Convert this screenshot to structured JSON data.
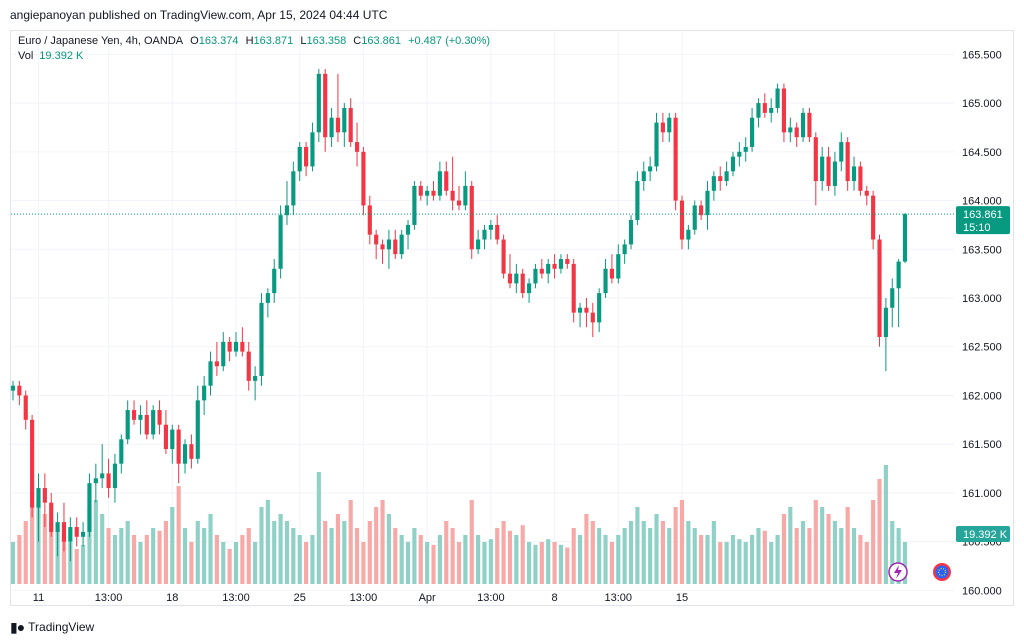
{
  "header": {
    "published": "angiepanoyan published on TradingView.com, Apr 15, 2024 04:44 UTC"
  },
  "legend": {
    "symbol": "Euro / Japanese Yen, 4h, OANDA",
    "open_label": "O",
    "open": "163.374",
    "high_label": "H",
    "high": "163.871",
    "low_label": "L",
    "low": "163.358",
    "close_label": "C",
    "close": "163.861",
    "change": "+0.487 (+0.30%)",
    "vol_label": "Vol",
    "vol": "19.392 K"
  },
  "price_tag": {
    "price": "163.861",
    "countdown": "15:10"
  },
  "volume_tag": "19.392 K",
  "footer": {
    "brand": "TradingView"
  },
  "colors": {
    "up": "#089981",
    "down": "#f23645",
    "up_vol": "#8fd1c6",
    "down_vol": "#f7a9a7"
  },
  "icons": {
    "flash": "lightning-icon",
    "flag": "eu-flag-icon"
  },
  "chart_data": {
    "type": "candlestick",
    "symbol": "EURJPY",
    "interval": "4h",
    "ylim": [
      159.85,
      165.75
    ],
    "y_ticks": [
      "165.500",
      "165.000",
      "164.500",
      "164.000",
      "163.500",
      "163.000",
      "162.500",
      "162.000",
      "161.500",
      "161.000",
      "160.500",
      "160.000"
    ],
    "x_ticks": [
      {
        "label": "11",
        "index": 4
      },
      {
        "label": "13:00",
        "index": 15
      },
      {
        "label": "18",
        "index": 25
      },
      {
        "label": "13:00",
        "index": 35
      },
      {
        "label": "25",
        "index": 45
      },
      {
        "label": "13:00",
        "index": 55
      },
      {
        "label": "Apr",
        "index": 65
      },
      {
        "label": "13:00",
        "index": 75
      },
      {
        "label": "8",
        "index": 85
      },
      {
        "label": "13:00",
        "index": 95
      },
      {
        "label": "15",
        "index": 105
      }
    ],
    "candles": [
      {
        "o": 162.05,
        "h": 162.15,
        "l": 161.95,
        "c": 162.1,
        "v": 0.3
      },
      {
        "o": 162.1,
        "h": 162.15,
        "l": 161.9,
        "c": 162.0,
        "v": 0.35
      },
      {
        "o": 162.0,
        "h": 162.05,
        "l": 161.65,
        "c": 161.75,
        "v": 0.45
      },
      {
        "o": 161.75,
        "h": 161.8,
        "l": 160.75,
        "c": 160.85,
        "v": 0.55
      },
      {
        "o": 160.85,
        "h": 161.2,
        "l": 160.5,
        "c": 161.05,
        "v": 0.6
      },
      {
        "o": 161.05,
        "h": 161.2,
        "l": 160.65,
        "c": 160.9,
        "v": 0.5
      },
      {
        "o": 160.9,
        "h": 161.0,
        "l": 160.55,
        "c": 160.6,
        "v": 0.45
      },
      {
        "o": 160.6,
        "h": 160.8,
        "l": 160.35,
        "c": 160.7,
        "v": 0.4
      },
      {
        "o": 160.7,
        "h": 160.9,
        "l": 160.4,
        "c": 160.5,
        "v": 0.35
      },
      {
        "o": 160.5,
        "h": 160.75,
        "l": 160.3,
        "c": 160.65,
        "v": 0.3
      },
      {
        "o": 160.65,
        "h": 160.75,
        "l": 160.45,
        "c": 160.55,
        "v": 0.25
      },
      {
        "o": 160.55,
        "h": 160.7,
        "l": 160.45,
        "c": 160.6,
        "v": 0.28
      },
      {
        "o": 160.6,
        "h": 161.2,
        "l": 160.55,
        "c": 161.1,
        "v": 0.55
      },
      {
        "o": 161.1,
        "h": 161.3,
        "l": 160.9,
        "c": 161.15,
        "v": 0.6
      },
      {
        "o": 161.15,
        "h": 161.5,
        "l": 161.05,
        "c": 161.2,
        "v": 0.5
      },
      {
        "o": 161.2,
        "h": 161.35,
        "l": 160.95,
        "c": 161.05,
        "v": 0.4
      },
      {
        "o": 161.05,
        "h": 161.4,
        "l": 160.9,
        "c": 161.3,
        "v": 0.35
      },
      {
        "o": 161.3,
        "h": 161.6,
        "l": 161.2,
        "c": 161.55,
        "v": 0.4
      },
      {
        "o": 161.55,
        "h": 161.95,
        "l": 161.5,
        "c": 161.85,
        "v": 0.45
      },
      {
        "o": 161.85,
        "h": 161.95,
        "l": 161.7,
        "c": 161.75,
        "v": 0.35
      },
      {
        "o": 161.75,
        "h": 161.9,
        "l": 161.6,
        "c": 161.8,
        "v": 0.3
      },
      {
        "o": 161.8,
        "h": 161.95,
        "l": 161.55,
        "c": 161.6,
        "v": 0.35
      },
      {
        "o": 161.6,
        "h": 161.9,
        "l": 161.55,
        "c": 161.85,
        "v": 0.4
      },
      {
        "o": 161.85,
        "h": 161.95,
        "l": 161.6,
        "c": 161.7,
        "v": 0.38
      },
      {
        "o": 161.7,
        "h": 161.85,
        "l": 161.4,
        "c": 161.45,
        "v": 0.45
      },
      {
        "o": 161.45,
        "h": 161.7,
        "l": 161.3,
        "c": 161.65,
        "v": 0.55
      },
      {
        "o": 161.65,
        "h": 161.7,
        "l": 161.1,
        "c": 161.3,
        "v": 0.7
      },
      {
        "o": 161.3,
        "h": 161.55,
        "l": 161.2,
        "c": 161.5,
        "v": 0.4
      },
      {
        "o": 161.5,
        "h": 161.6,
        "l": 161.25,
        "c": 161.35,
        "v": 0.3
      },
      {
        "o": 161.35,
        "h": 162.1,
        "l": 161.3,
        "c": 161.95,
        "v": 0.45
      },
      {
        "o": 161.95,
        "h": 162.2,
        "l": 161.8,
        "c": 162.1,
        "v": 0.4
      },
      {
        "o": 162.1,
        "h": 162.45,
        "l": 162.0,
        "c": 162.35,
        "v": 0.5
      },
      {
        "o": 162.35,
        "h": 162.55,
        "l": 162.2,
        "c": 162.3,
        "v": 0.35
      },
      {
        "o": 162.3,
        "h": 162.65,
        "l": 162.25,
        "c": 162.55,
        "v": 0.3
      },
      {
        "o": 162.55,
        "h": 162.6,
        "l": 162.35,
        "c": 162.45,
        "v": 0.25
      },
      {
        "o": 162.45,
        "h": 162.65,
        "l": 162.4,
        "c": 162.55,
        "v": 0.3
      },
      {
        "o": 162.55,
        "h": 162.7,
        "l": 162.4,
        "c": 162.45,
        "v": 0.35
      },
      {
        "o": 162.45,
        "h": 162.55,
        "l": 162.05,
        "c": 162.15,
        "v": 0.4
      },
      {
        "o": 162.15,
        "h": 162.3,
        "l": 161.95,
        "c": 162.2,
        "v": 0.3
      },
      {
        "o": 162.2,
        "h": 163.05,
        "l": 162.1,
        "c": 162.95,
        "v": 0.55
      },
      {
        "o": 162.95,
        "h": 163.1,
        "l": 162.8,
        "c": 163.05,
        "v": 0.6
      },
      {
        "o": 163.05,
        "h": 163.4,
        "l": 162.95,
        "c": 163.3,
        "v": 0.45
      },
      {
        "o": 163.3,
        "h": 163.95,
        "l": 163.2,
        "c": 163.85,
        "v": 0.5
      },
      {
        "o": 163.85,
        "h": 164.2,
        "l": 163.75,
        "c": 163.95,
        "v": 0.45
      },
      {
        "o": 163.95,
        "h": 164.4,
        "l": 163.85,
        "c": 164.3,
        "v": 0.4
      },
      {
        "o": 164.3,
        "h": 164.6,
        "l": 164.2,
        "c": 164.55,
        "v": 0.35
      },
      {
        "o": 164.55,
        "h": 164.6,
        "l": 164.25,
        "c": 164.35,
        "v": 0.3
      },
      {
        "o": 164.35,
        "h": 164.8,
        "l": 164.3,
        "c": 164.7,
        "v": 0.35
      },
      {
        "o": 164.7,
        "h": 165.35,
        "l": 164.6,
        "c": 165.3,
        "v": 0.8
      },
      {
        "o": 165.3,
        "h": 165.35,
        "l": 164.5,
        "c": 164.65,
        "v": 0.45
      },
      {
        "o": 164.65,
        "h": 164.95,
        "l": 164.55,
        "c": 164.85,
        "v": 0.4
      },
      {
        "o": 164.85,
        "h": 165.3,
        "l": 164.6,
        "c": 164.7,
        "v": 0.5
      },
      {
        "o": 164.7,
        "h": 165.0,
        "l": 164.55,
        "c": 164.95,
        "v": 0.45
      },
      {
        "o": 164.95,
        "h": 165.05,
        "l": 164.55,
        "c": 164.6,
        "v": 0.6
      },
      {
        "o": 164.6,
        "h": 164.8,
        "l": 164.35,
        "c": 164.5,
        "v": 0.4
      },
      {
        "o": 164.5,
        "h": 164.55,
        "l": 163.85,
        "c": 163.95,
        "v": 0.3
      },
      {
        "o": 163.95,
        "h": 164.05,
        "l": 163.55,
        "c": 163.65,
        "v": 0.45
      },
      {
        "o": 163.65,
        "h": 163.7,
        "l": 163.4,
        "c": 163.55,
        "v": 0.55
      },
      {
        "o": 163.55,
        "h": 163.6,
        "l": 163.35,
        "c": 163.5,
        "v": 0.6
      },
      {
        "o": 163.5,
        "h": 163.7,
        "l": 163.3,
        "c": 163.6,
        "v": 0.5
      },
      {
        "o": 163.6,
        "h": 163.7,
        "l": 163.4,
        "c": 163.45,
        "v": 0.4
      },
      {
        "o": 163.45,
        "h": 163.7,
        "l": 163.4,
        "c": 163.65,
        "v": 0.35
      },
      {
        "o": 163.65,
        "h": 163.8,
        "l": 163.5,
        "c": 163.75,
        "v": 0.3
      },
      {
        "o": 163.75,
        "h": 164.2,
        "l": 163.7,
        "c": 164.15,
        "v": 0.4
      },
      {
        "o": 164.15,
        "h": 164.2,
        "l": 164.0,
        "c": 164.05,
        "v": 0.35
      },
      {
        "o": 164.05,
        "h": 164.15,
        "l": 163.95,
        "c": 164.1,
        "v": 0.3
      },
      {
        "o": 164.1,
        "h": 164.2,
        "l": 164.0,
        "c": 164.05,
        "v": 0.28
      },
      {
        "o": 164.05,
        "h": 164.4,
        "l": 164.0,
        "c": 164.3,
        "v": 0.35
      },
      {
        "o": 164.3,
        "h": 164.4,
        "l": 164.05,
        "c": 164.1,
        "v": 0.45
      },
      {
        "o": 164.1,
        "h": 164.45,
        "l": 163.9,
        "c": 164.0,
        "v": 0.4
      },
      {
        "o": 164.0,
        "h": 164.15,
        "l": 163.9,
        "c": 163.95,
        "v": 0.3
      },
      {
        "o": 163.95,
        "h": 164.3,
        "l": 163.9,
        "c": 164.15,
        "v": 0.35
      },
      {
        "o": 164.15,
        "h": 164.2,
        "l": 163.4,
        "c": 163.5,
        "v": 0.6
      },
      {
        "o": 163.5,
        "h": 163.7,
        "l": 163.45,
        "c": 163.6,
        "v": 0.35
      },
      {
        "o": 163.6,
        "h": 163.75,
        "l": 163.5,
        "c": 163.7,
        "v": 0.3
      },
      {
        "o": 163.7,
        "h": 163.8,
        "l": 163.6,
        "c": 163.75,
        "v": 0.32
      },
      {
        "o": 163.75,
        "h": 163.85,
        "l": 163.55,
        "c": 163.6,
        "v": 0.4
      },
      {
        "o": 163.6,
        "h": 163.65,
        "l": 163.2,
        "c": 163.25,
        "v": 0.45
      },
      {
        "o": 163.25,
        "h": 163.45,
        "l": 163.1,
        "c": 163.15,
        "v": 0.38
      },
      {
        "o": 163.15,
        "h": 163.35,
        "l": 163.05,
        "c": 163.25,
        "v": 0.35
      },
      {
        "o": 163.25,
        "h": 163.3,
        "l": 163.0,
        "c": 163.05,
        "v": 0.42
      },
      {
        "o": 163.05,
        "h": 163.2,
        "l": 162.95,
        "c": 163.15,
        "v": 0.3
      },
      {
        "o": 163.15,
        "h": 163.35,
        "l": 163.1,
        "c": 163.3,
        "v": 0.28
      },
      {
        "o": 163.3,
        "h": 163.4,
        "l": 163.2,
        "c": 163.25,
        "v": 0.3
      },
      {
        "o": 163.25,
        "h": 163.4,
        "l": 163.15,
        "c": 163.35,
        "v": 0.32
      },
      {
        "o": 163.35,
        "h": 163.45,
        "l": 163.2,
        "c": 163.3,
        "v": 0.3
      },
      {
        "o": 163.3,
        "h": 163.45,
        "l": 163.25,
        "c": 163.4,
        "v": 0.28
      },
      {
        "o": 163.4,
        "h": 163.45,
        "l": 163.3,
        "c": 163.35,
        "v": 0.26
      },
      {
        "o": 163.35,
        "h": 163.4,
        "l": 162.75,
        "c": 162.85,
        "v": 0.4
      },
      {
        "o": 162.85,
        "h": 162.95,
        "l": 162.7,
        "c": 162.9,
        "v": 0.35
      },
      {
        "o": 162.9,
        "h": 163.0,
        "l": 162.7,
        "c": 162.85,
        "v": 0.5
      },
      {
        "o": 162.85,
        "h": 162.95,
        "l": 162.6,
        "c": 162.75,
        "v": 0.45
      },
      {
        "o": 162.75,
        "h": 163.1,
        "l": 162.65,
        "c": 163.05,
        "v": 0.4
      },
      {
        "o": 163.05,
        "h": 163.4,
        "l": 163.0,
        "c": 163.3,
        "v": 0.35
      },
      {
        "o": 163.3,
        "h": 163.45,
        "l": 163.15,
        "c": 163.2,
        "v": 0.3
      },
      {
        "o": 163.2,
        "h": 163.55,
        "l": 163.15,
        "c": 163.45,
        "v": 0.35
      },
      {
        "o": 163.45,
        "h": 163.6,
        "l": 163.35,
        "c": 163.55,
        "v": 0.4
      },
      {
        "o": 163.55,
        "h": 163.85,
        "l": 163.5,
        "c": 163.8,
        "v": 0.45
      },
      {
        "o": 163.8,
        "h": 164.3,
        "l": 163.75,
        "c": 164.2,
        "v": 0.55
      },
      {
        "o": 164.2,
        "h": 164.4,
        "l": 164.1,
        "c": 164.3,
        "v": 0.45
      },
      {
        "o": 164.3,
        "h": 164.45,
        "l": 164.2,
        "c": 164.35,
        "v": 0.4
      },
      {
        "o": 164.35,
        "h": 164.9,
        "l": 164.3,
        "c": 164.8,
        "v": 0.5
      },
      {
        "o": 164.8,
        "h": 164.9,
        "l": 164.6,
        "c": 164.7,
        "v": 0.45
      },
      {
        "o": 164.7,
        "h": 164.9,
        "l": 164.6,
        "c": 164.85,
        "v": 0.4
      },
      {
        "o": 164.85,
        "h": 164.9,
        "l": 163.9,
        "c": 164.0,
        "v": 0.55
      },
      {
        "o": 164.0,
        "h": 164.05,
        "l": 163.5,
        "c": 163.6,
        "v": 0.6
      },
      {
        "o": 163.6,
        "h": 163.75,
        "l": 163.5,
        "c": 163.7,
        "v": 0.45
      },
      {
        "o": 163.7,
        "h": 164.0,
        "l": 163.65,
        "c": 163.95,
        "v": 0.4
      },
      {
        "o": 163.95,
        "h": 164.0,
        "l": 163.8,
        "c": 163.85,
        "v": 0.35
      },
      {
        "o": 163.85,
        "h": 164.2,
        "l": 163.7,
        "c": 164.1,
        "v": 0.35
      },
      {
        "o": 164.1,
        "h": 164.3,
        "l": 164.0,
        "c": 164.25,
        "v": 0.45
      },
      {
        "o": 164.25,
        "h": 164.35,
        "l": 164.1,
        "c": 164.2,
        "v": 0.3
      },
      {
        "o": 164.2,
        "h": 164.4,
        "l": 164.15,
        "c": 164.3,
        "v": 0.3
      },
      {
        "o": 164.3,
        "h": 164.5,
        "l": 164.25,
        "c": 164.45,
        "v": 0.35
      },
      {
        "o": 164.45,
        "h": 164.6,
        "l": 164.35,
        "c": 164.5,
        "v": 0.32
      },
      {
        "o": 164.5,
        "h": 164.65,
        "l": 164.4,
        "c": 164.55,
        "v": 0.3
      },
      {
        "o": 164.55,
        "h": 164.95,
        "l": 164.5,
        "c": 164.85,
        "v": 0.35
      },
      {
        "o": 164.85,
        "h": 165.05,
        "l": 164.75,
        "c": 165.0,
        "v": 0.4
      },
      {
        "o": 165.0,
        "h": 165.1,
        "l": 164.85,
        "c": 164.9,
        "v": 0.38
      },
      {
        "o": 164.9,
        "h": 165.05,
        "l": 164.8,
        "c": 164.95,
        "v": 0.3
      },
      {
        "o": 164.95,
        "h": 165.2,
        "l": 164.9,
        "c": 165.15,
        "v": 0.35
      },
      {
        "o": 165.15,
        "h": 165.2,
        "l": 164.6,
        "c": 164.7,
        "v": 0.5
      },
      {
        "o": 164.7,
        "h": 164.85,
        "l": 164.6,
        "c": 164.75,
        "v": 0.55
      },
      {
        "o": 164.75,
        "h": 164.8,
        "l": 164.55,
        "c": 164.65,
        "v": 0.4
      },
      {
        "o": 164.65,
        "h": 164.95,
        "l": 164.6,
        "c": 164.9,
        "v": 0.45
      },
      {
        "o": 164.9,
        "h": 164.95,
        "l": 164.6,
        "c": 164.65,
        "v": 0.4
      },
      {
        "o": 164.65,
        "h": 164.7,
        "l": 163.95,
        "c": 164.2,
        "v": 0.6
      },
      {
        "o": 164.2,
        "h": 164.55,
        "l": 164.1,
        "c": 164.45,
        "v": 0.55
      },
      {
        "o": 164.45,
        "h": 164.55,
        "l": 164.1,
        "c": 164.15,
        "v": 0.5
      },
      {
        "o": 164.15,
        "h": 164.5,
        "l": 164.05,
        "c": 164.4,
        "v": 0.45
      },
      {
        "o": 164.4,
        "h": 164.7,
        "l": 164.3,
        "c": 164.6,
        "v": 0.4
      },
      {
        "o": 164.6,
        "h": 164.65,
        "l": 164.1,
        "c": 164.2,
        "v": 0.55
      },
      {
        "o": 164.2,
        "h": 164.45,
        "l": 164.1,
        "c": 164.35,
        "v": 0.4
      },
      {
        "o": 164.35,
        "h": 164.4,
        "l": 164.05,
        "c": 164.1,
        "v": 0.35
      },
      {
        "o": 164.1,
        "h": 164.15,
        "l": 163.95,
        "c": 164.05,
        "v": 0.3
      },
      {
        "o": 164.05,
        "h": 164.1,
        "l": 163.5,
        "c": 163.6,
        "v": 0.6
      },
      {
        "o": 163.6,
        "h": 163.65,
        "l": 162.5,
        "c": 162.6,
        "v": 0.75
      },
      {
        "o": 162.6,
        "h": 163.0,
        "l": 162.25,
        "c": 162.9,
        "v": 0.85
      },
      {
        "o": 162.9,
        "h": 163.2,
        "l": 162.7,
        "c": 163.1,
        "v": 0.45
      },
      {
        "o": 163.1,
        "h": 163.4,
        "l": 162.7,
        "c": 163.374,
        "v": 0.4
      },
      {
        "o": 163.374,
        "h": 163.871,
        "l": 163.358,
        "c": 163.861,
        "v": 0.3
      }
    ]
  }
}
